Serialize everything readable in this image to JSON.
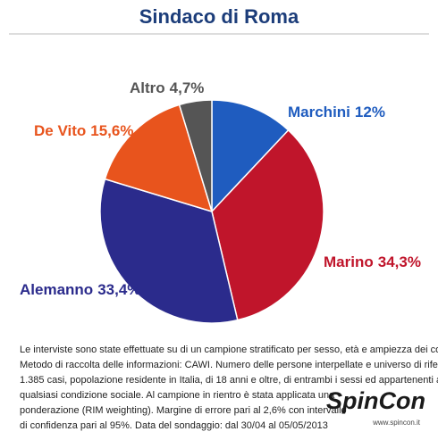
{
  "chart_data": {
    "type": "pie",
    "title": "Sindaco di Roma",
    "categories": [
      "Marchini",
      "Marino",
      "Alemanno",
      "De Vito",
      "Altro"
    ],
    "values": [
      12,
      34.3,
      33.4,
      15.6,
      4.7
    ],
    "value_labels": [
      "12%",
      "34,3%",
      "33,4%",
      "15,6%",
      "4,7%"
    ],
    "colors": [
      "#1f5cbf",
      "#c0152b",
      "#2b2b8c",
      "#e8541d",
      "#555555"
    ],
    "note": [
      "Le interviste sono state effettuate su di un campione stratificato per sesso, età e ampiezza dei comuni.",
      "Metodo di raccolta delle informazioni: CAWI. Numero delle persone interpellate e universo di riferimento:",
      "1.385 casi, popolazione residente in Italia, di 18 anni e oltre, di entrambi i sessi ed appartenenti a",
      "qualsiasi condizione sociale. Al campione in rientro è stata applicata una",
      "ponderazione (RIM weighting). Margine di errore pari al 2,6% con intervallo",
      "di confidenza pari al 95%. Data del sondaggio: dal 30/04 al 05/05/2013"
    ],
    "source_logo": "SpinCon",
    "source_url": "www.spincon.it"
  }
}
